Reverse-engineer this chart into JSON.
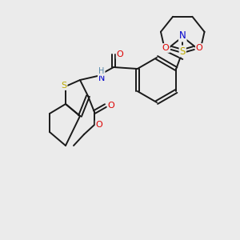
{
  "background_color": "#ebebeb",
  "figsize": [
    3.0,
    3.0
  ],
  "dpi": 100,
  "atom_colors": {
    "C": "#1a1a1a",
    "N": "#0000cc",
    "O": "#dd0000",
    "S": "#bbaa00",
    "H": "#5588aa"
  },
  "bond_color": "#1a1a1a",
  "bond_width": 1.4
}
